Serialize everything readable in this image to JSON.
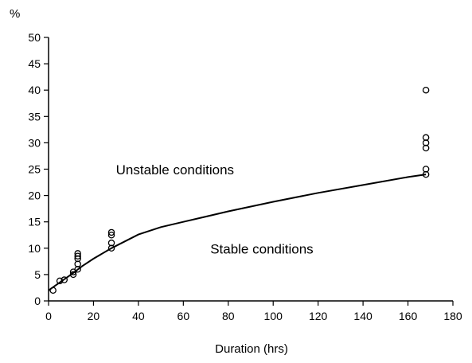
{
  "chart_data": {
    "type": "scatter",
    "title": "",
    "xlabel": "Duration (hrs)",
    "ylabel": "%",
    "xlim": [
      0,
      180
    ],
    "ylim": [
      0,
      50
    ],
    "x_ticks": [
      0,
      20,
      40,
      60,
      80,
      100,
      120,
      140,
      160,
      180
    ],
    "y_ticks": [
      0,
      5,
      10,
      15,
      20,
      25,
      30,
      35,
      40,
      45,
      50
    ],
    "grid": false,
    "legend": "none",
    "annotations": [
      {
        "text": "Unstable conditions",
        "x": 30,
        "y": 24
      },
      {
        "text": "Stable conditions",
        "x": 72,
        "y": 9
      }
    ],
    "series": [
      {
        "type": "scatter",
        "marker": "open-circle",
        "points": [
          {
            "x": 2,
            "y": 2
          },
          {
            "x": 5,
            "y": 3.8
          },
          {
            "x": 7,
            "y": 4
          },
          {
            "x": 11,
            "y": 5
          },
          {
            "x": 11,
            "y": 5.5
          },
          {
            "x": 13,
            "y": 6
          },
          {
            "x": 13,
            "y": 7
          },
          {
            "x": 13,
            "y": 8
          },
          {
            "x": 13,
            "y": 8.5
          },
          {
            "x": 13,
            "y": 9
          },
          {
            "x": 28,
            "y": 10
          },
          {
            "x": 28,
            "y": 11
          },
          {
            "x": 28,
            "y": 12.5
          },
          {
            "x": 28,
            "y": 13
          },
          {
            "x": 168,
            "y": 24
          },
          {
            "x": 168,
            "y": 25
          },
          {
            "x": 168,
            "y": 29
          },
          {
            "x": 168,
            "y": 30
          },
          {
            "x": 168,
            "y": 31
          },
          {
            "x": 168,
            "y": 40
          }
        ]
      },
      {
        "type": "line",
        "x": [
          0,
          2,
          5,
          10,
          15,
          20,
          28,
          40,
          50,
          60,
          80,
          100,
          120,
          140,
          160,
          168
        ],
        "values": [
          2.0,
          2.6,
          3.5,
          5.0,
          6.6,
          8.0,
          10.0,
          12.6,
          14.0,
          15.0,
          17.0,
          18.8,
          20.5,
          22.0,
          23.5,
          24.0
        ]
      }
    ]
  }
}
